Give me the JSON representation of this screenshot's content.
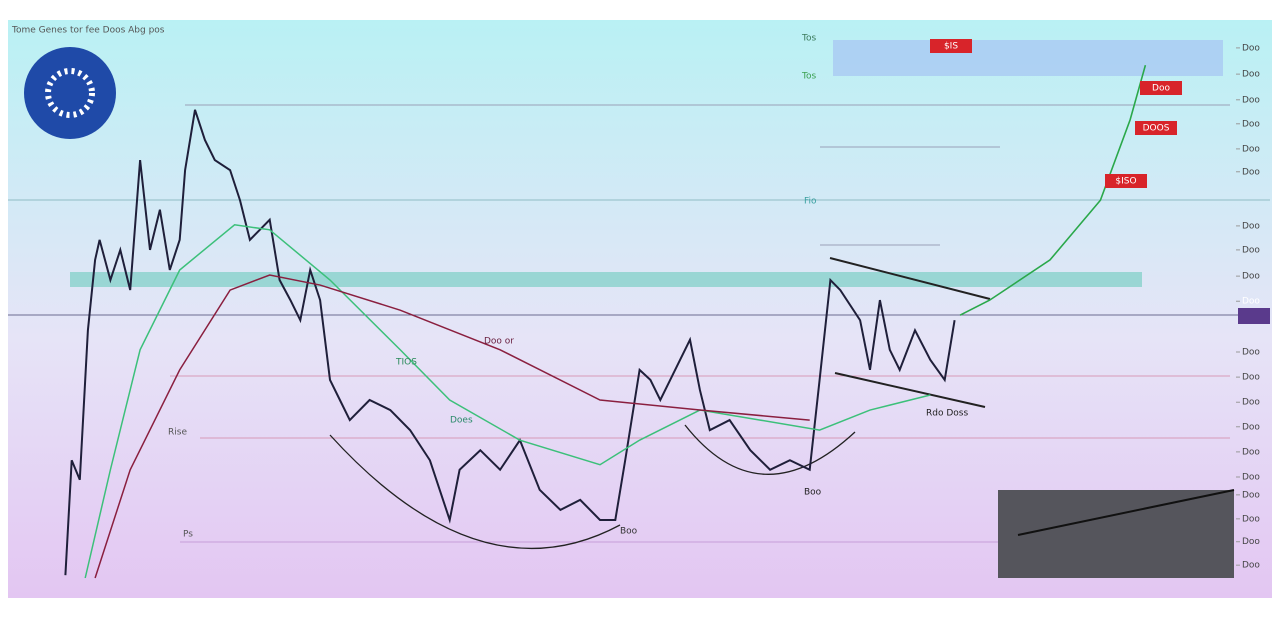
{
  "chart_data": {
    "type": "line",
    "title": "Tome Genes tor fee Doos Abg pos",
    "xlim": [
      0,
      130
    ],
    "ylim": [
      0,
      100
    ],
    "yticks": [
      {
        "value": 95,
        "label": "Doo"
      },
      {
        "value": 90.3,
        "label": "Doo"
      },
      {
        "value": 85.7,
        "label": "Doo"
      },
      {
        "value": 81.4,
        "label": "Doo"
      },
      {
        "value": 76.9,
        "label": "Doo"
      },
      {
        "value": 72.8,
        "label": "Doo"
      },
      {
        "value": 63.1,
        "label": "Doo"
      },
      {
        "value": 58.8,
        "label": "Doo"
      },
      {
        "value": 54.1,
        "label": "Doo"
      },
      {
        "value": 49.6,
        "label": "Doo"
      },
      {
        "value": 40.5,
        "label": "Doo"
      },
      {
        "value": 36,
        "label": "Doo"
      },
      {
        "value": 31.5,
        "label": "Doo"
      },
      {
        "value": 27.1,
        "label": "Doo"
      },
      {
        "value": 22.6,
        "label": "Doo"
      },
      {
        "value": 18.1,
        "label": "Doo"
      },
      {
        "value": 14.9,
        "label": "Doo"
      },
      {
        "value": 10.6,
        "label": "Doo"
      },
      {
        "value": 6.5,
        "label": "Doo"
      },
      {
        "value": 2.3,
        "label": "Doo"
      }
    ],
    "series": [
      {
        "color": "#1f1f3a",
        "width": 2,
        "x": [
          0.6,
          1.3,
          2.2,
          3.1,
          3.9,
          4.4,
          5.6,
          6.7,
          7.8,
          8.9,
          10,
          11.1,
          12.2,
          13.3,
          13.9,
          15,
          16.1,
          17.2,
          18.9,
          20,
          21.1,
          22.2,
          23.3,
          24.4,
          25.6,
          26.7,
          27.8,
          28.9,
          30,
          31.1,
          32.2,
          34.4,
          36.7,
          38.9,
          41.1,
          43.3,
          44.4,
          46.7,
          48.9,
          51.1,
          53.3,
          55.6,
          57.8,
          60,
          61.7,
          62.8,
          64.4,
          65.6,
          66.7,
          68.9,
          70,
          71.1,
          72.2,
          74.4,
          76.7,
          78.9,
          81.1,
          83.3,
          84.4,
          85.6,
          86.7,
          88.9,
          90,
          91.1,
          92.2,
          93.3,
          95,
          96.7,
          98.3,
          99.4
        ],
        "values": [
          0.5,
          21.1,
          17.6,
          44.4,
          57,
          60.6,
          53.4,
          58.8,
          51.6,
          74.9,
          58.8,
          66,
          55.2,
          60.6,
          73.1,
          83.9,
          78.5,
          74.9,
          73.1,
          67.7,
          60.6,
          62.4,
          64.2,
          53.4,
          49.8,
          46.2,
          55.2,
          49.8,
          35.5,
          31.9,
          28.3,
          31.9,
          30.1,
          26.5,
          21.1,
          10.4,
          19.4,
          22.9,
          19.4,
          24.7,
          15.8,
          12.2,
          14,
          10.4,
          10.4,
          21.1,
          37.3,
          35.5,
          31.9,
          39.1,
          42.7,
          33.7,
          26.5,
          28.3,
          22.9,
          19.4,
          21.1,
          19.4,
          35.5,
          53.4,
          51.6,
          46.2,
          37.3,
          49.8,
          40.9,
          37.3,
          44.4,
          39.1,
          35.5,
          46.2
        ]
      },
      {
        "color": "#2aa84a",
        "width": 1.6,
        "x": [
          100,
          103.3,
          110,
          115.6,
          118.9,
          120.6
        ],
        "values": [
          47.1,
          49.8,
          57,
          67.7,
          82.1,
          91.9
        ]
      },
      {
        "color": "#3cc07a",
        "width": 1.5,
        "x": [
          2.8,
          5.6,
          8.9,
          13.3,
          19.4,
          23.3,
          30,
          37.8,
          43.3,
          51.1,
          60,
          64.4,
          71.1,
          77.8,
          84.4,
          90,
          96.7
        ],
        "values": [
          0,
          19.4,
          40.9,
          55.2,
          63.3,
          62.4,
          53.4,
          40.9,
          31.9,
          24.7,
          20.3,
          24.7,
          30.1,
          28.3,
          26.5,
          30.1,
          32.8
        ]
      },
      {
        "color": "#8a1f3f",
        "width": 1.5,
        "x": [
          3.9,
          7.8,
          13.3,
          18.9,
          23.3,
          28.9,
          37.8,
          48.9,
          60,
          71.1,
          83.3
        ],
        "values": [
          0,
          19.4,
          37.3,
          51.6,
          54.3,
          52.5,
          48,
          40.9,
          31.9,
          30.1,
          28.3
        ]
      }
    ],
    "annotations": [
      "Doo or",
      "TIOS",
      "Does",
      "Rise",
      "Boo",
      "Tos",
      "Tos",
      "Fio",
      "Ps",
      "Rdo Doss",
      "Boo"
    ],
    "price_tags": [
      "$IS",
      "Doo",
      "DOOS",
      "$ISO"
    ]
  }
}
